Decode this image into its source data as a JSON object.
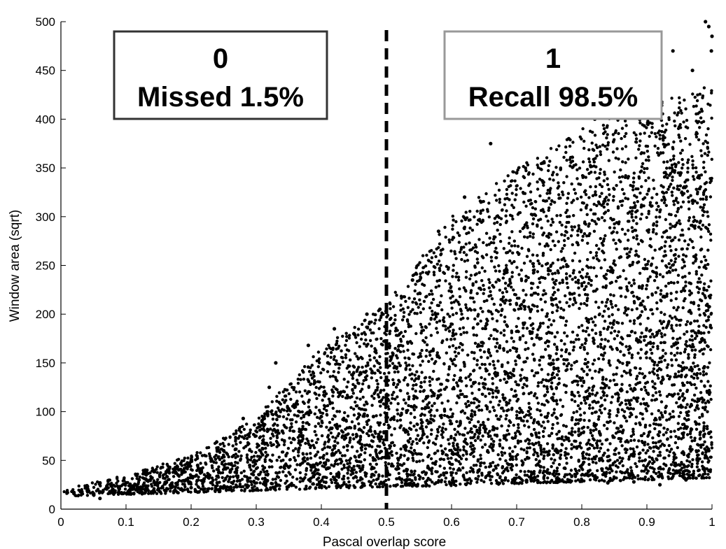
{
  "chart_data": {
    "type": "scatter",
    "xlabel": "Pascal overlap score",
    "ylabel": "Window area (sqrt)",
    "xlim": [
      0,
      1
    ],
    "ylim": [
      0,
      500
    ],
    "x_ticks": [
      "0",
      "0.1",
      "0.2",
      "0.3",
      "0.4",
      "0.5",
      "0.6",
      "0.7",
      "0.8",
      "0.9",
      "1"
    ],
    "y_ticks": [
      "0",
      "50",
      "100",
      "150",
      "200",
      "250",
      "300",
      "350",
      "400",
      "450",
      "500"
    ],
    "threshold_x": 0.5,
    "threshold_style": "dashed",
    "annotations": [
      {
        "class_label": "0",
        "text": "Missed 1.5%",
        "side": "left",
        "border_color": "#333333"
      },
      {
        "class_label": "1",
        "text": "Recall 98.5%",
        "side": "right",
        "border_color": "#999999"
      }
    ],
    "marker_color": "#000000",
    "upper_envelope": [
      [
        0.0,
        20
      ],
      [
        0.1,
        35
      ],
      [
        0.2,
        55
      ],
      [
        0.3,
        95
      ],
      [
        0.4,
        165
      ],
      [
        0.5,
        210
      ],
      [
        0.6,
        300
      ],
      [
        0.7,
        350
      ],
      [
        0.8,
        390
      ],
      [
        0.9,
        415
      ],
      [
        1.0,
        435
      ]
    ],
    "lower_envelope": [
      [
        0.0,
        13
      ],
      [
        0.1,
        15
      ],
      [
        0.2,
        17
      ],
      [
        0.3,
        19
      ],
      [
        0.4,
        21
      ],
      [
        0.5,
        23
      ],
      [
        0.6,
        24
      ],
      [
        0.7,
        26
      ],
      [
        0.8,
        28
      ],
      [
        0.9,
        30
      ],
      [
        1.0,
        32
      ]
    ],
    "points": [
      [
        0.01,
        17
      ],
      [
        0.02,
        16
      ],
      [
        0.03,
        18
      ],
      [
        0.04,
        24
      ],
      [
        0.05,
        15
      ],
      [
        0.06,
        11
      ],
      [
        0.06,
        27
      ],
      [
        0.08,
        20
      ],
      [
        0.09,
        23
      ],
      [
        0.1,
        27
      ],
      [
        0.11,
        22
      ],
      [
        0.12,
        30
      ],
      [
        0.13,
        40
      ],
      [
        0.14,
        32
      ],
      [
        0.15,
        21
      ],
      [
        0.16,
        26
      ],
      [
        0.18,
        35
      ],
      [
        0.19,
        29
      ],
      [
        0.2,
        22
      ],
      [
        0.21,
        45
      ],
      [
        0.22,
        31
      ],
      [
        0.23,
        52
      ],
      [
        0.24,
        27
      ],
      [
        0.25,
        60
      ],
      [
        0.26,
        38
      ],
      [
        0.27,
        23
      ],
      [
        0.28,
        93
      ],
      [
        0.29,
        45
      ],
      [
        0.3,
        32
      ],
      [
        0.31,
        62
      ],
      [
        0.32,
        125
      ],
      [
        0.33,
        150
      ],
      [
        0.34,
        80
      ],
      [
        0.35,
        43
      ],
      [
        0.36,
        105
      ],
      [
        0.37,
        70
      ],
      [
        0.38,
        168
      ],
      [
        0.39,
        130
      ],
      [
        0.4,
        95
      ],
      [
        0.41,
        150
      ],
      [
        0.42,
        185
      ],
      [
        0.43,
        120
      ],
      [
        0.44,
        65
      ],
      [
        0.45,
        180
      ],
      [
        0.46,
        140
      ],
      [
        0.47,
        200
      ],
      [
        0.48,
        95
      ],
      [
        0.49,
        205
      ],
      [
        0.5,
        20
      ],
      [
        0.54,
        235
      ],
      [
        0.58,
        285
      ],
      [
        0.62,
        320
      ],
      [
        0.66,
        375
      ],
      [
        0.7,
        345
      ],
      [
        0.74,
        355
      ],
      [
        0.78,
        380
      ],
      [
        0.82,
        400
      ],
      [
        0.86,
        405
      ],
      [
        0.9,
        420
      ],
      [
        0.94,
        470
      ],
      [
        0.97,
        450
      ],
      [
        0.99,
        500
      ],
      [
        0.995,
        495
      ],
      [
        1.0,
        485
      ],
      [
        0.999,
        470
      ],
      [
        0.98,
        40
      ],
      [
        0.99,
        55
      ],
      [
        0.995,
        60
      ],
      [
        0.97,
        35
      ],
      [
        0.96,
        30
      ],
      [
        0.92,
        25
      ],
      [
        0.88,
        28
      ],
      [
        0.84,
        27
      ]
    ]
  }
}
